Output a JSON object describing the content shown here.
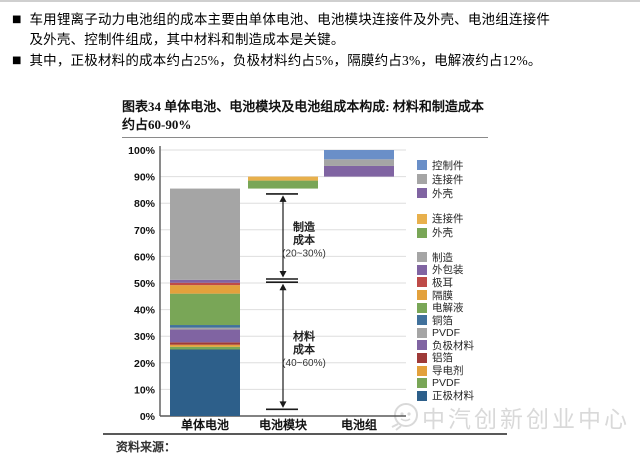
{
  "page": {
    "bullets": [
      "车用锂离子动力电池组的成本主要由单体电池、电池模块连接件及外壳、电池组连接件及外壳、控制件组成，其中材料和制造成本是关键。",
      "其中，正极材料的成本约占25%，负极材料约占5%，隔膜约占3%，电解液约占12%。"
    ],
    "source_note": "资料来源：",
    "watermark": "中汽创新创业中心"
  },
  "figure": {
    "title": "图表34 单体电池、电池模块及电池组成本构成: 材料和制造成本约占60-90%"
  },
  "chart_data": {
    "type": "bar",
    "subtype": "stacked-waterfall",
    "title": "图表34 单体电池、电池模块及电池组成本构成: 材料和制造成本约占60-90%",
    "unit": "%",
    "ylim": [
      0,
      100
    ],
    "ytick_step": 10,
    "grid": true,
    "legend_position": "right",
    "categories": [
      "单体电池",
      "电池模块",
      "电池组"
    ],
    "bars": [
      {
        "category": "单体电池",
        "base": 0,
        "segments": [
          {
            "name": "正极材料",
            "value": 25,
            "color": "#2D5F8A"
          },
          {
            "name": "PVDF",
            "value": 1,
            "color": "#79A657"
          },
          {
            "name": "导电剂",
            "value": 0.8,
            "color": "#E3A13C"
          },
          {
            "name": "铝箔",
            "value": 0.9,
            "color": "#9E3A38"
          },
          {
            "name": "负极材料",
            "value": 4.8,
            "color": "#8064A2"
          },
          {
            "name": "PVDF",
            "value": 0.7,
            "color": "#A5A5A5"
          },
          {
            "name": "铜箔",
            "value": 1.0,
            "color": "#41719C"
          },
          {
            "name": "电解液",
            "value": 11.8,
            "color": "#79A657"
          },
          {
            "name": "隔膜",
            "value": 3.2,
            "color": "#E3A13C"
          },
          {
            "name": "极耳",
            "value": 0.9,
            "color": "#BE4B48"
          },
          {
            "name": "外包装",
            "value": 1.1,
            "color": "#8064A2"
          },
          {
            "name": "制造",
            "value": 34.3,
            "color": "#A5A5A5"
          }
        ]
      },
      {
        "category": "电池模块",
        "base": 85.5,
        "segments": [
          {
            "name": "外壳",
            "value": 3,
            "color": "#79A657"
          },
          {
            "name": "连接件",
            "value": 1.5,
            "color": "#E8B04C"
          }
        ]
      },
      {
        "category": "电池组",
        "base": 90,
        "segments": [
          {
            "name": "外壳",
            "value": 4,
            "color": "#8064A2"
          },
          {
            "name": "连接件",
            "value": 2.5,
            "color": "#A5A5A5"
          },
          {
            "name": "控制件",
            "value": 3.5,
            "color": "#6A8FC8"
          }
        ]
      }
    ],
    "annotations": [
      {
        "name": "manufacturing-cost",
        "lines": [
          "制造",
          "成本",
          "(20~30%)"
        ],
        "from": 51.5,
        "to": 83.5
      },
      {
        "name": "material-cost",
        "lines": [
          "材料",
          "成本",
          "(40~60%)"
        ],
        "from": 2.5,
        "to": 50.3
      }
    ],
    "legend_groups": [
      {
        "items": [
          {
            "label": "控制件",
            "color": "#6A8FC8"
          },
          {
            "label": "连接件",
            "color": "#A5A5A5"
          },
          {
            "label": "外壳",
            "color": "#8064A2"
          }
        ]
      },
      {
        "items": [
          {
            "label": "连接件",
            "color": "#E8B04C"
          },
          {
            "label": "外壳",
            "color": "#79A657"
          }
        ]
      },
      {
        "items": [
          {
            "label": "制造",
            "color": "#A5A5A5"
          },
          {
            "label": "外包装",
            "color": "#8064A2"
          },
          {
            "label": "极耳",
            "color": "#BE4B48"
          },
          {
            "label": "隔膜",
            "color": "#E3A13C"
          },
          {
            "label": "电解液",
            "color": "#79A657"
          },
          {
            "label": "铜箔",
            "color": "#41719C"
          },
          {
            "label": "PVDF",
            "color": "#A5A5A5"
          },
          {
            "label": "负极材料",
            "color": "#8064A2"
          },
          {
            "label": "铝箔",
            "color": "#9E3A38"
          },
          {
            "label": "导电剂",
            "color": "#E3A13C"
          },
          {
            "label": "PVDF",
            "color": "#79A657"
          },
          {
            "label": "正极材料",
            "color": "#2D5F8A"
          }
        ]
      }
    ]
  }
}
